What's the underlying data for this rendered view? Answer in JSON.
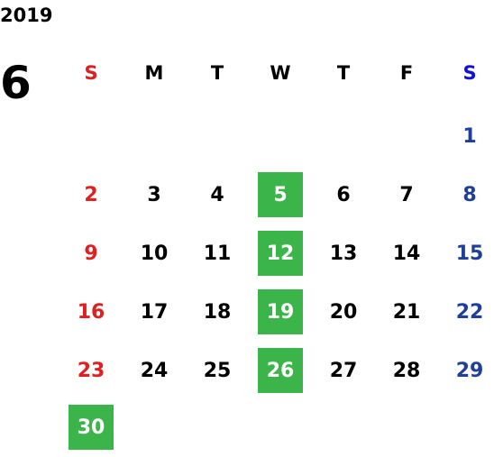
{
  "calendar": {
    "year": "2019",
    "month": "6",
    "weekdays": [
      "S",
      "M",
      "T",
      "W",
      "T",
      "F",
      "S"
    ],
    "weeks": [
      [
        "",
        "",
        "",
        "",
        "",
        "",
        "1"
      ],
      [
        "2",
        "3",
        "4",
        "5",
        "6",
        "7",
        "8"
      ],
      [
        "9",
        "10",
        "11",
        "12",
        "13",
        "14",
        "15"
      ],
      [
        "16",
        "17",
        "18",
        "19",
        "20",
        "21",
        "22"
      ],
      [
        "23",
        "24",
        "25",
        "26",
        "27",
        "28",
        "29"
      ],
      [
        "30",
        "",
        "",
        "",
        "",
        "",
        ""
      ]
    ],
    "highlighted_days": [
      "5",
      "12",
      "19",
      "26",
      "30"
    ],
    "colors": {
      "sunday": "#e02020",
      "saturday": "#1f3f9a",
      "saturday_header": "#1010e0",
      "highlight": "#3bb54a",
      "text": "#000000"
    }
  }
}
